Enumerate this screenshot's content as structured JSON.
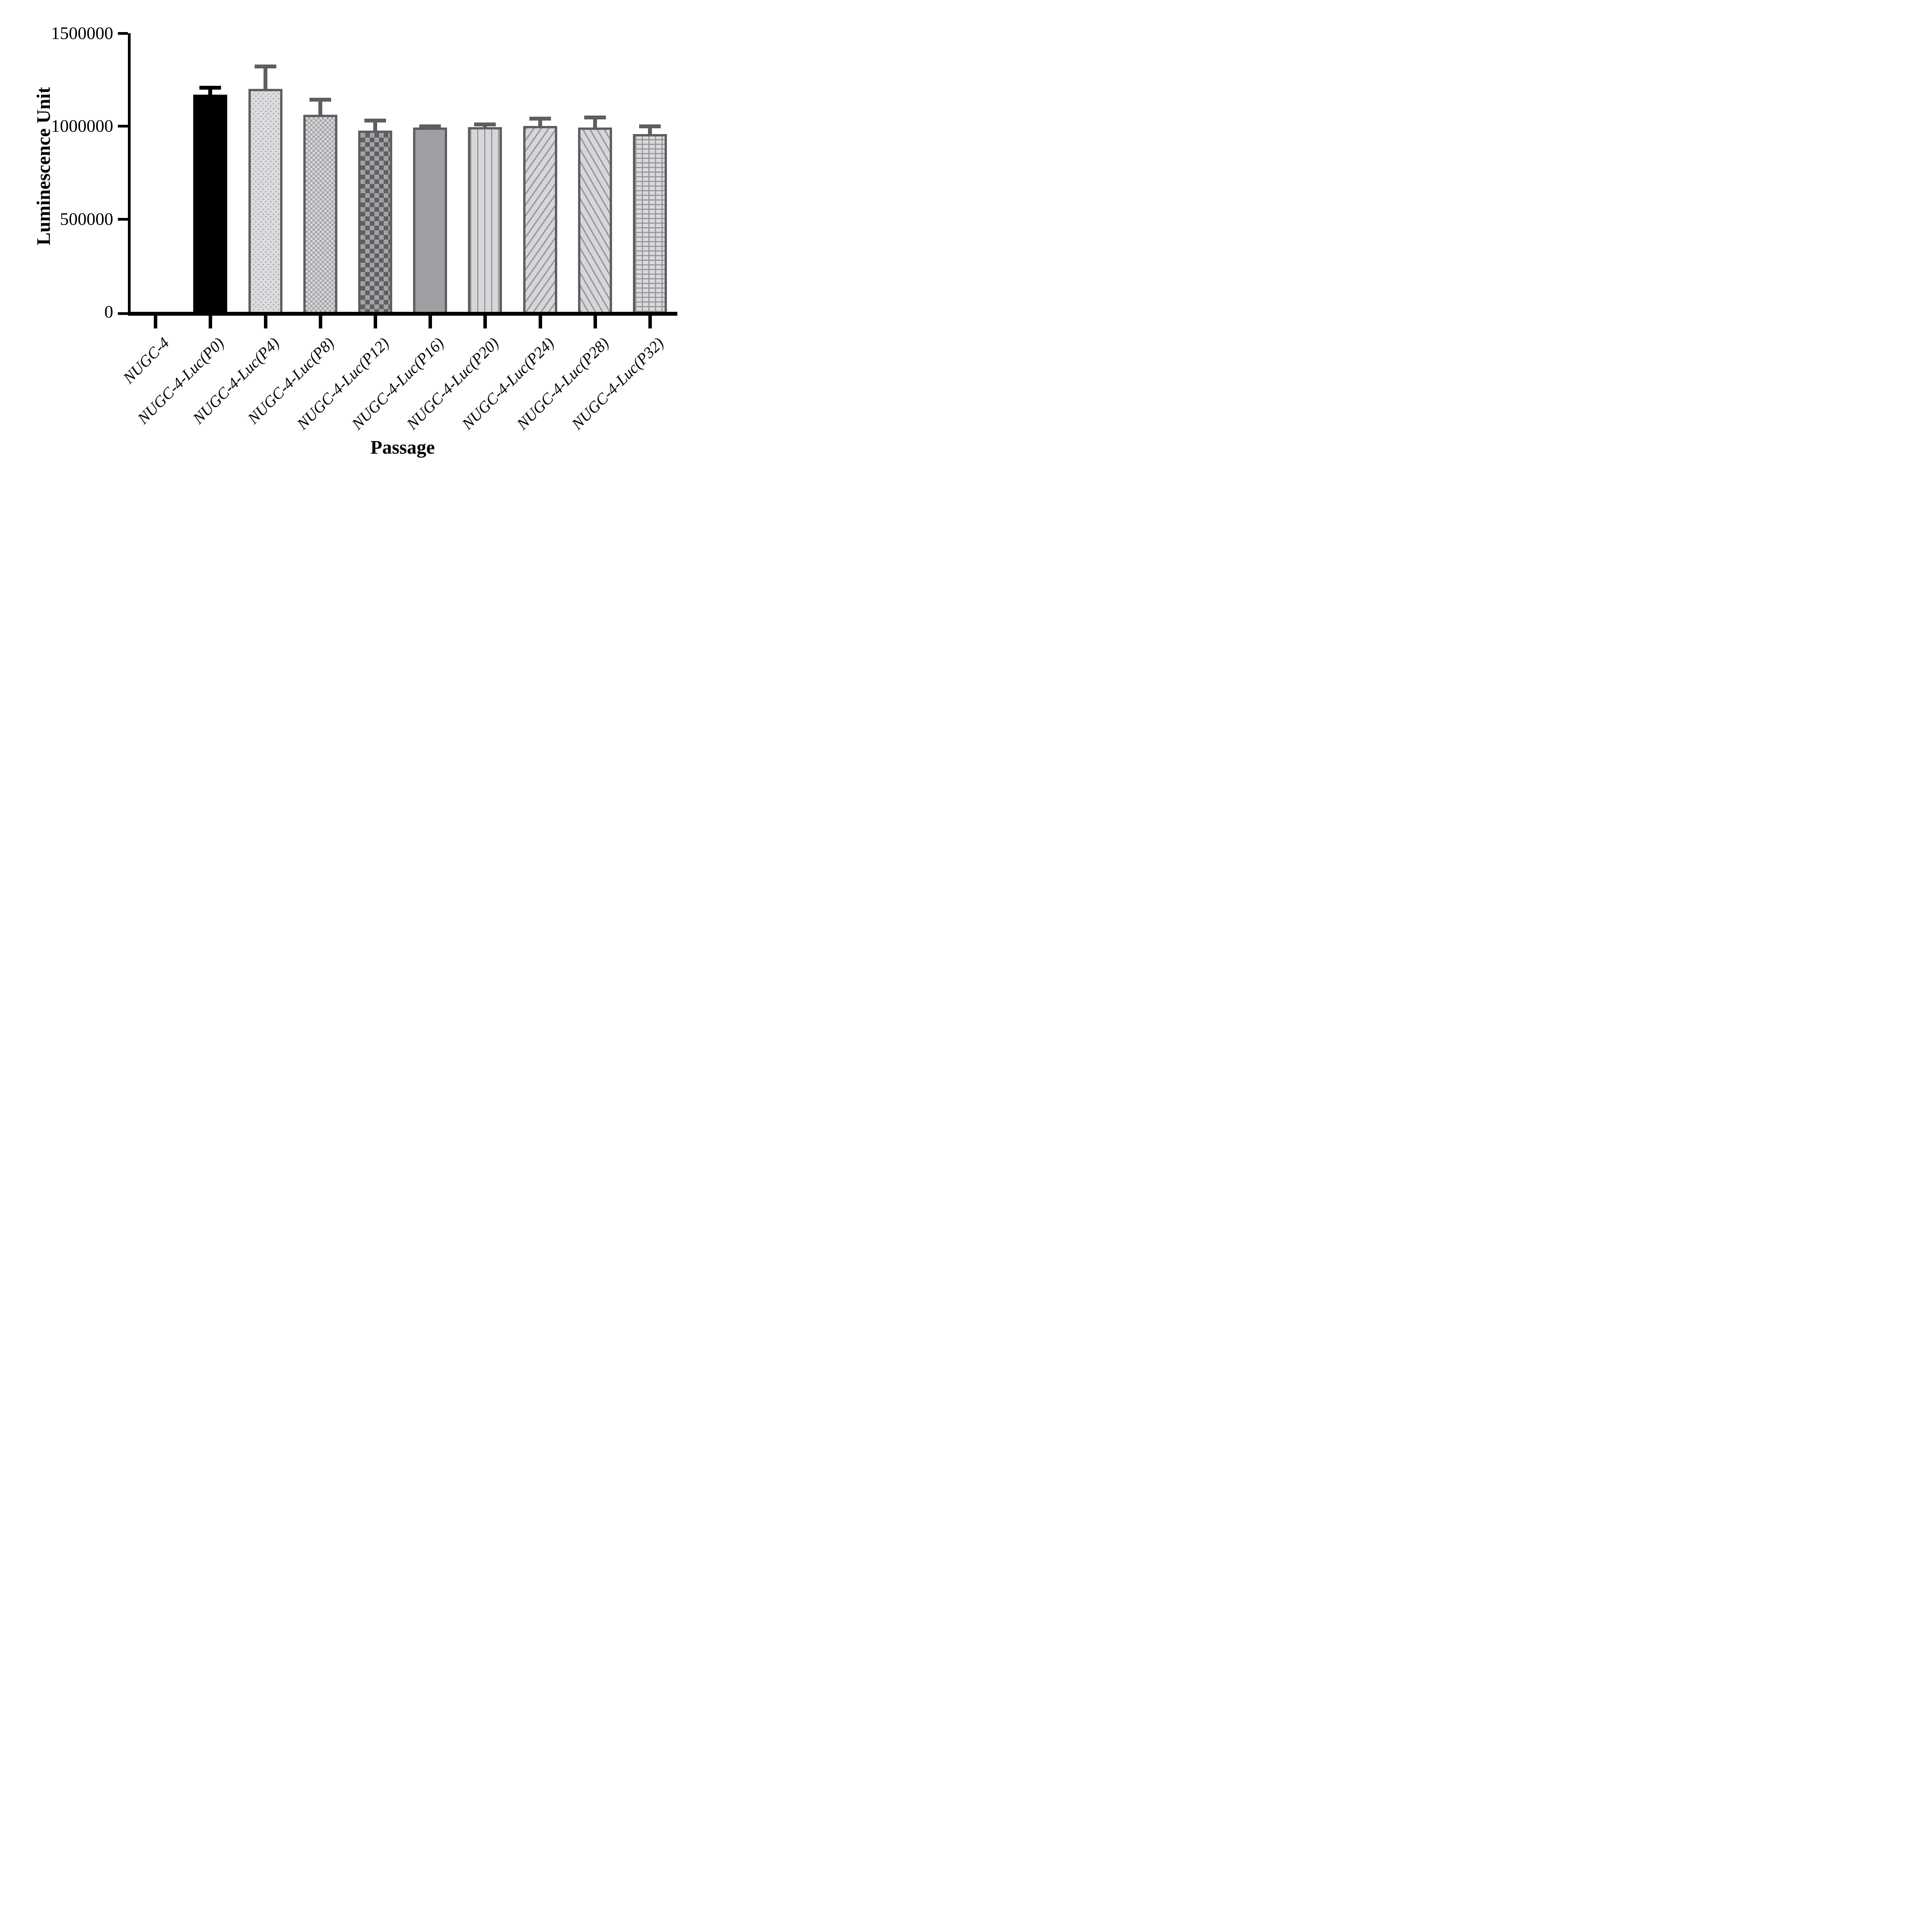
{
  "chart_data": {
    "type": "bar",
    "title": "",
    "xlabel": "Passage",
    "ylabel": "Luminescence Unit",
    "categories": [
      "NUGC-4",
      "NUGC-4-Luc(P0)",
      "NUGC-4-Luc(P4)",
      "NUGC-4-Luc(P8)",
      "NUGC-4-Luc(P12)",
      "NUGC-4-Luc(P16)",
      "NUGC-4-Luc(P20)",
      "NUGC-4-Luc(P24)",
      "NUGC-4-Luc(P28)",
      "NUGC-4-Luc(P32)"
    ],
    "values": [
      0,
      1170000,
      1200000,
      1060000,
      975000,
      993000,
      995000,
      1000000,
      993000,
      958000
    ],
    "errors_sd": [
      0,
      47000,
      131000,
      92000,
      66000,
      17000,
      25000,
      50000,
      64000,
      52000
    ],
    "error_type": "SD, upper whisker only",
    "ylim": [
      0,
      1500000
    ],
    "yticks": [
      0,
      500000,
      1000000,
      1500000
    ],
    "ytick_labels": [
      "0",
      "500000",
      "1000000",
      "1500000"
    ],
    "grid": false,
    "legend_position": "none",
    "bar_patterns": [
      "none",
      "solid-black",
      "dots",
      "checker",
      "checker-dark",
      "solid-gray",
      "vlines",
      "diag-up",
      "diag-down",
      "grid"
    ],
    "colors": {
      "axis": "#000000",
      "black_bar": "#000000",
      "black_error": "#000000",
      "pattern_border": "#5e5e60",
      "pattern_error": "#5e5e60",
      "fill_light": "#dcdcde",
      "fill_medium": "#9fa0a4",
      "pattern_line": "#96979c",
      "checker_light": "#d8d8da",
      "checker_medium": "#a5a6aa",
      "checker_dark": "#5f5f61",
      "background": "#ffffff"
    }
  }
}
